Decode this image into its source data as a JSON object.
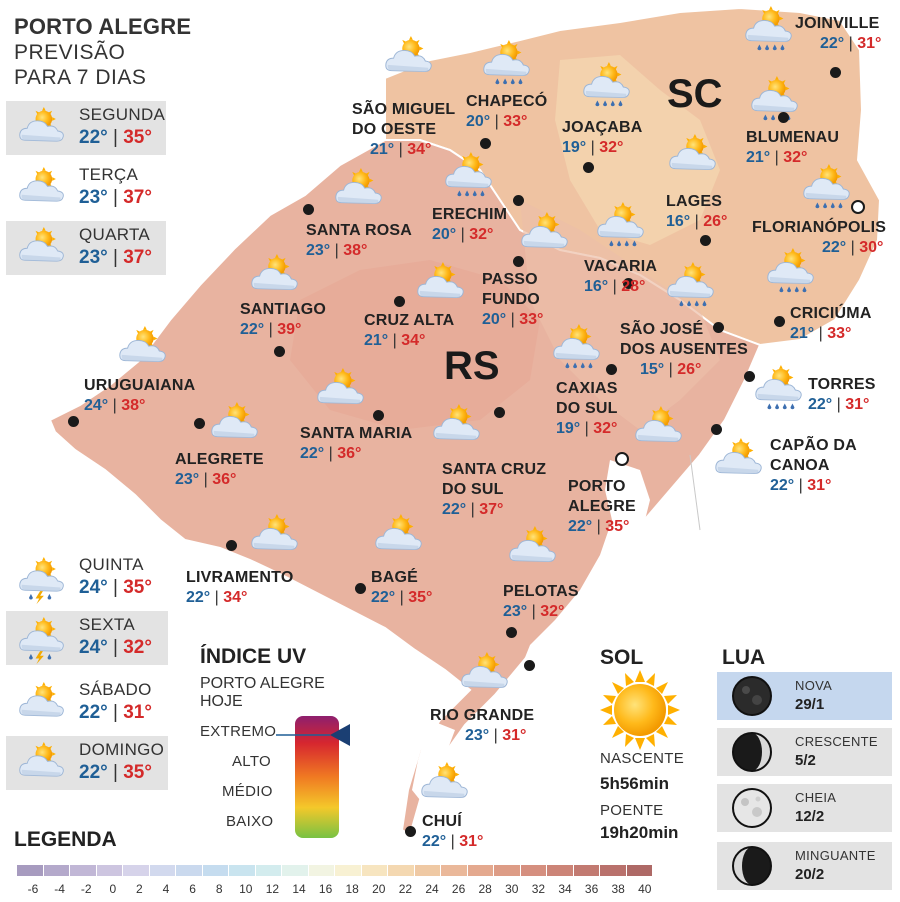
{
  "header": {
    "title": "PORTO ALEGRE",
    "line2": "PREVISÃO",
    "line3": "PARA 7 DIAS"
  },
  "forecast": [
    {
      "day": "SEGUNDA",
      "min": "22°",
      "max": "35°",
      "icon": "partly-cloudy-icon"
    },
    {
      "day": "TERÇA",
      "min": "23°",
      "max": "37°",
      "icon": "partly-cloudy-icon"
    },
    {
      "day": "QUARTA",
      "min": "23°",
      "max": "37°",
      "icon": "partly-cloudy-icon"
    },
    {
      "day": "QUINTA",
      "min": "24°",
      "max": "35°",
      "icon": "thunderstorm-icon"
    },
    {
      "day": "SEXTA",
      "min": "24°",
      "max": "32°",
      "icon": "thunderstorm-icon"
    },
    {
      "day": "SÁBADO",
      "min": "22°",
      "max": "31°",
      "icon": "partly-cloudy-icon"
    },
    {
      "day": "DOMINGO",
      "min": "22°",
      "max": "35°",
      "icon": "partly-cloudy-icon"
    }
  ],
  "states": {
    "rs": "RS",
    "sc": "SC"
  },
  "cities": [
    {
      "name": [
        "SÃO MIGUEL",
        "DO OESTE"
      ],
      "min": "21°",
      "max": "34°",
      "icon": "partly-cloudy-icon"
    },
    {
      "name": [
        "CHAPECÓ"
      ],
      "min": "20°",
      "max": "33°",
      "icon": "rain-icon"
    },
    {
      "name": [
        "JOAÇABA"
      ],
      "min": "19°",
      "max": "32°",
      "icon": "rain-icon"
    },
    {
      "name": [
        "JOINVILLE"
      ],
      "min": "22°",
      "max": "31°",
      "icon": "rain-icon"
    },
    {
      "name": [
        "BLUMENAU"
      ],
      "min": "21°",
      "max": "32°",
      "icon": "rain-icon"
    },
    {
      "name": [
        "LAGES"
      ],
      "min": "16°",
      "max": "26°",
      "icon": "partly-cloudy-icon"
    },
    {
      "name": [
        "FLORIANÓPOLIS"
      ],
      "min": "22°",
      "max": "30°",
      "icon": "rain-icon"
    },
    {
      "name": [
        "ERECHIM"
      ],
      "min": "20°",
      "max": "32°",
      "icon": "rain-icon"
    },
    {
      "name": [
        "SANTA ROSA"
      ],
      "min": "23°",
      "max": "38°",
      "icon": "partly-cloudy-icon"
    },
    {
      "name": [
        "VACARIA"
      ],
      "min": "16°",
      "max": "28°",
      "icon": "rain-icon"
    },
    {
      "name": [
        "PASSO",
        "FUNDO"
      ],
      "min": "20°",
      "max": "33°",
      "icon": "partly-cloudy-icon"
    },
    {
      "name": [
        "SANTIAGO"
      ],
      "min": "22°",
      "max": "39°",
      "icon": "partly-cloudy-icon"
    },
    {
      "name": [
        "CRUZ ALTA"
      ],
      "min": "21°",
      "max": "34°",
      "icon": "partly-cloudy-icon"
    },
    {
      "name": [
        "SÃO JOSÉ",
        "DOS AUSENTES"
      ],
      "min": "15°",
      "max": "26°",
      "icon": "rain-icon"
    },
    {
      "name": [
        "CRICIÚMA"
      ],
      "min": "21°",
      "max": "33°",
      "icon": "rain-icon"
    },
    {
      "name": [
        "URUGUAIANA"
      ],
      "min": "24°",
      "max": "38°",
      "icon": "partly-cloudy-icon"
    },
    {
      "name": [
        "CAXIAS",
        "DO SUL"
      ],
      "min": "19°",
      "max": "32°",
      "icon": "rain-icon"
    },
    {
      "name": [
        "TORRES"
      ],
      "min": "22°",
      "max": "31°",
      "icon": "rain-icon"
    },
    {
      "name": [
        "SANTA MARIA"
      ],
      "min": "22°",
      "max": "36°",
      "icon": "partly-cloudy-icon"
    },
    {
      "name": [
        "ALEGRETE"
      ],
      "min": "23°",
      "max": "36°",
      "icon": "partly-cloudy-icon"
    },
    {
      "name": [
        "CAPÃO DA",
        "CANOA"
      ],
      "min": "22°",
      "max": "31°",
      "icon": "partly-cloudy-icon"
    },
    {
      "name": [
        "SANTA CRUZ",
        "DO SUL"
      ],
      "min": "22°",
      "max": "37°",
      "icon": "partly-cloudy-icon"
    },
    {
      "name": [
        "PORTO",
        "ALEGRE"
      ],
      "min": "22°",
      "max": "35°",
      "icon": "partly-cloudy-icon"
    },
    {
      "name": [
        "LIVRAMENTO"
      ],
      "min": "22°",
      "max": "34°",
      "icon": "partly-cloudy-icon"
    },
    {
      "name": [
        "BAGÉ"
      ],
      "min": "22°",
      "max": "35°",
      "icon": "partly-cloudy-icon"
    },
    {
      "name": [
        "PELOTAS"
      ],
      "min": "23°",
      "max": "32°",
      "icon": "partly-cloudy-icon"
    },
    {
      "name": [
        "RIO GRANDE"
      ],
      "min": "23°",
      "max": "31°",
      "icon": "partly-cloudy-icon"
    },
    {
      "name": [
        "CHUÍ"
      ],
      "min": "22°",
      "max": "31°",
      "icon": "partly-cloudy-icon"
    }
  ],
  "uv": {
    "title": "ÍNDICE UV",
    "subtitle": [
      "PORTO ALEGRE",
      "HOJE"
    ],
    "levels": [
      "EXTREMO",
      "ALTO",
      "MÉDIO",
      "BAIXO"
    ],
    "current_level": "EXTREMO",
    "colors": [
      "#8e1f6e",
      "#d6262f",
      "#f07a22",
      "#f4c82a",
      "#78c243"
    ]
  },
  "sun": {
    "title": "SOL",
    "rise_label": "NASCENTE",
    "rise": "5h56min",
    "set_label": "POENTE",
    "set": "19h20min",
    "icon": "sun-icon"
  },
  "moon": {
    "title": "LUA",
    "phases": [
      {
        "name": "NOVA",
        "date": "29/1",
        "icon": "new-moon-icon",
        "highlighted": true
      },
      {
        "name": "CRESCENTE",
        "date": "5/2",
        "icon": "first-quarter-moon-icon",
        "highlighted": false
      },
      {
        "name": "CHEIA",
        "date": "12/2",
        "icon": "full-moon-icon",
        "highlighted": false
      },
      {
        "name": "MINGUANTE",
        "date": "20/2",
        "icon": "last-quarter-moon-icon",
        "highlighted": false
      }
    ]
  },
  "legend": {
    "title": "LEGENDA",
    "ticks": [
      "-6",
      "-4",
      "-2",
      "0",
      "2",
      "4",
      "6",
      "8",
      "10",
      "12",
      "14",
      "16",
      "18",
      "20",
      "22",
      "24",
      "26",
      "28",
      "30",
      "32",
      "34",
      "36",
      "38",
      "40"
    ],
    "colors": [
      "#a79bbf",
      "#b4a9cb",
      "#c1b7d6",
      "#cdc5e0",
      "#d6d3ea",
      "#d2d9ee",
      "#cad9ee",
      "#c5dcef",
      "#c9e4ef",
      "#d3ecee",
      "#e2f2ec",
      "#f2f4e2",
      "#f8f1d3",
      "#f7e5c0",
      "#f4d8b1",
      "#efc9a4",
      "#eab89a",
      "#e4a98f",
      "#dd9c86",
      "#d58f7f",
      "#cc8477",
      "#c27a71",
      "#b9716c",
      "#ae6966"
    ]
  },
  "colors": {
    "temp_min": "#1f5f96",
    "temp_max": "#d42a2a",
    "rs_fill": "#e9b5a3",
    "sc_fill": "#efc4a2"
  }
}
